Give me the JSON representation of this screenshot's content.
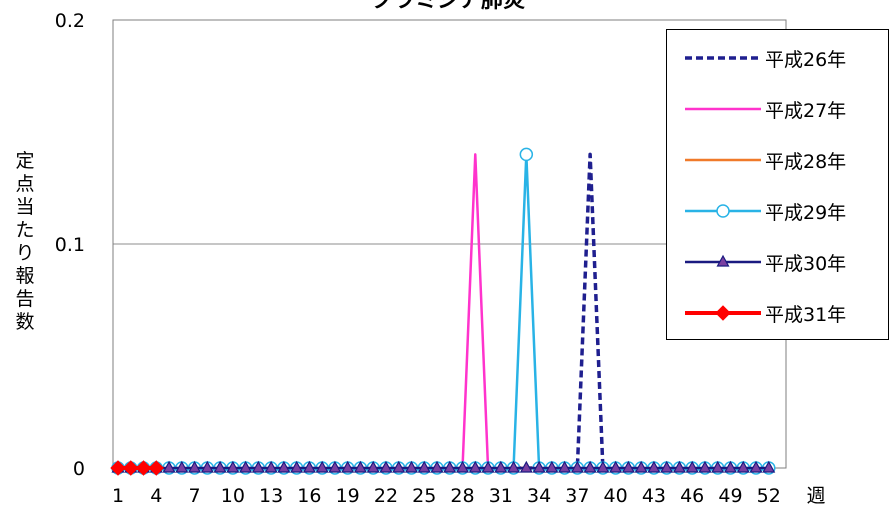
{
  "chart_data": {
    "type": "line",
    "title": "クラミジア肺炎",
    "xlabel": "週",
    "ylabel": "定点当たり報告数",
    "ylim": [
      0,
      0.2
    ],
    "yticks": [
      "0",
      "0.1",
      "0.2"
    ],
    "xticks": [
      "1",
      "4",
      "7",
      "10",
      "13",
      "16",
      "19",
      "22",
      "25",
      "28",
      "31",
      "34",
      "37",
      "40",
      "43",
      "46",
      "49",
      "52"
    ],
    "grid": true,
    "legend_position": "top-right",
    "x": [
      1,
      2,
      3,
      4,
      5,
      6,
      7,
      8,
      9,
      10,
      11,
      12,
      13,
      14,
      15,
      16,
      17,
      18,
      19,
      20,
      21,
      22,
      23,
      24,
      25,
      26,
      27,
      28,
      29,
      30,
      31,
      32,
      33,
      34,
      35,
      36,
      37,
      38,
      39,
      40,
      41,
      42,
      43,
      44,
      45,
      46,
      47,
      48,
      49,
      50,
      51,
      52
    ],
    "series": [
      {
        "name": "平成26年",
        "color": "#1f1f8f",
        "style": "dashed",
        "marker": "none",
        "values": [
          0,
          0,
          0,
          0,
          0,
          0,
          0,
          0,
          0,
          0,
          0,
          0,
          0,
          0,
          0,
          0,
          0,
          0,
          0,
          0,
          0,
          0,
          0,
          0,
          0,
          0,
          0,
          0,
          0,
          0,
          0,
          0,
          0,
          0,
          0,
          0,
          0,
          0.14,
          0,
          0,
          0,
          0,
          0,
          0,
          0,
          0,
          0,
          0,
          0,
          0,
          0,
          0
        ]
      },
      {
        "name": "平成27年",
        "color": "#ff33cc",
        "style": "solid",
        "marker": "none",
        "values": [
          0,
          0,
          0,
          0,
          0,
          0,
          0,
          0,
          0,
          0,
          0,
          0,
          0,
          0,
          0,
          0,
          0,
          0,
          0,
          0,
          0,
          0,
          0,
          0,
          0,
          0,
          0,
          0,
          0.14,
          0,
          0,
          0,
          0,
          0,
          0,
          0,
          0,
          0,
          0,
          0,
          0,
          0,
          0,
          0,
          0,
          0,
          0,
          0,
          0,
          0,
          0,
          0
        ]
      },
      {
        "name": "平成28年",
        "color": "#f07a2a",
        "style": "solid",
        "marker": "none",
        "values": [
          0,
          0,
          0,
          0,
          0,
          0,
          0,
          0,
          0,
          0,
          0,
          0,
          0,
          0,
          0,
          0,
          0,
          0,
          0,
          0,
          0,
          0,
          0,
          0,
          0,
          0,
          0,
          0,
          0,
          0,
          0,
          0,
          0,
          0,
          0,
          0,
          0,
          0,
          0,
          0,
          0,
          0,
          0,
          0,
          0,
          0,
          0,
          0,
          0,
          0,
          0,
          0
        ]
      },
      {
        "name": "平成29年",
        "color": "#29b3e6",
        "style": "solid",
        "marker": "circle",
        "values": [
          0,
          0,
          0,
          0,
          0,
          0,
          0,
          0,
          0,
          0,
          0,
          0,
          0,
          0,
          0,
          0,
          0,
          0,
          0,
          0,
          0,
          0,
          0,
          0,
          0,
          0,
          0,
          0,
          0,
          0,
          0,
          0,
          0.14,
          0,
          0,
          0,
          0,
          0,
          0,
          0,
          0,
          0,
          0,
          0,
          0,
          0,
          0,
          0,
          0,
          0,
          0,
          0
        ]
      },
      {
        "name": "平成30年",
        "color": "#1a1a80",
        "style": "solid",
        "marker": "triangle",
        "marker_fill": "#7a3fa0",
        "values": [
          0,
          0,
          0,
          0,
          0,
          0,
          0,
          0,
          0,
          0,
          0,
          0,
          0,
          0,
          0,
          0,
          0,
          0,
          0,
          0,
          0,
          0,
          0,
          0,
          0,
          0,
          0,
          0,
          0,
          0,
          0,
          0,
          0,
          0,
          0,
          0,
          0,
          0,
          0,
          0,
          0,
          0,
          0,
          0,
          0,
          0,
          0,
          0,
          0,
          0,
          0,
          0
        ]
      },
      {
        "name": "平成31年",
        "color": "#ff0000",
        "style": "solid",
        "marker": "diamond",
        "x": [
          1,
          2,
          3,
          4
        ],
        "values": [
          0,
          0,
          0,
          0
        ]
      }
    ]
  }
}
